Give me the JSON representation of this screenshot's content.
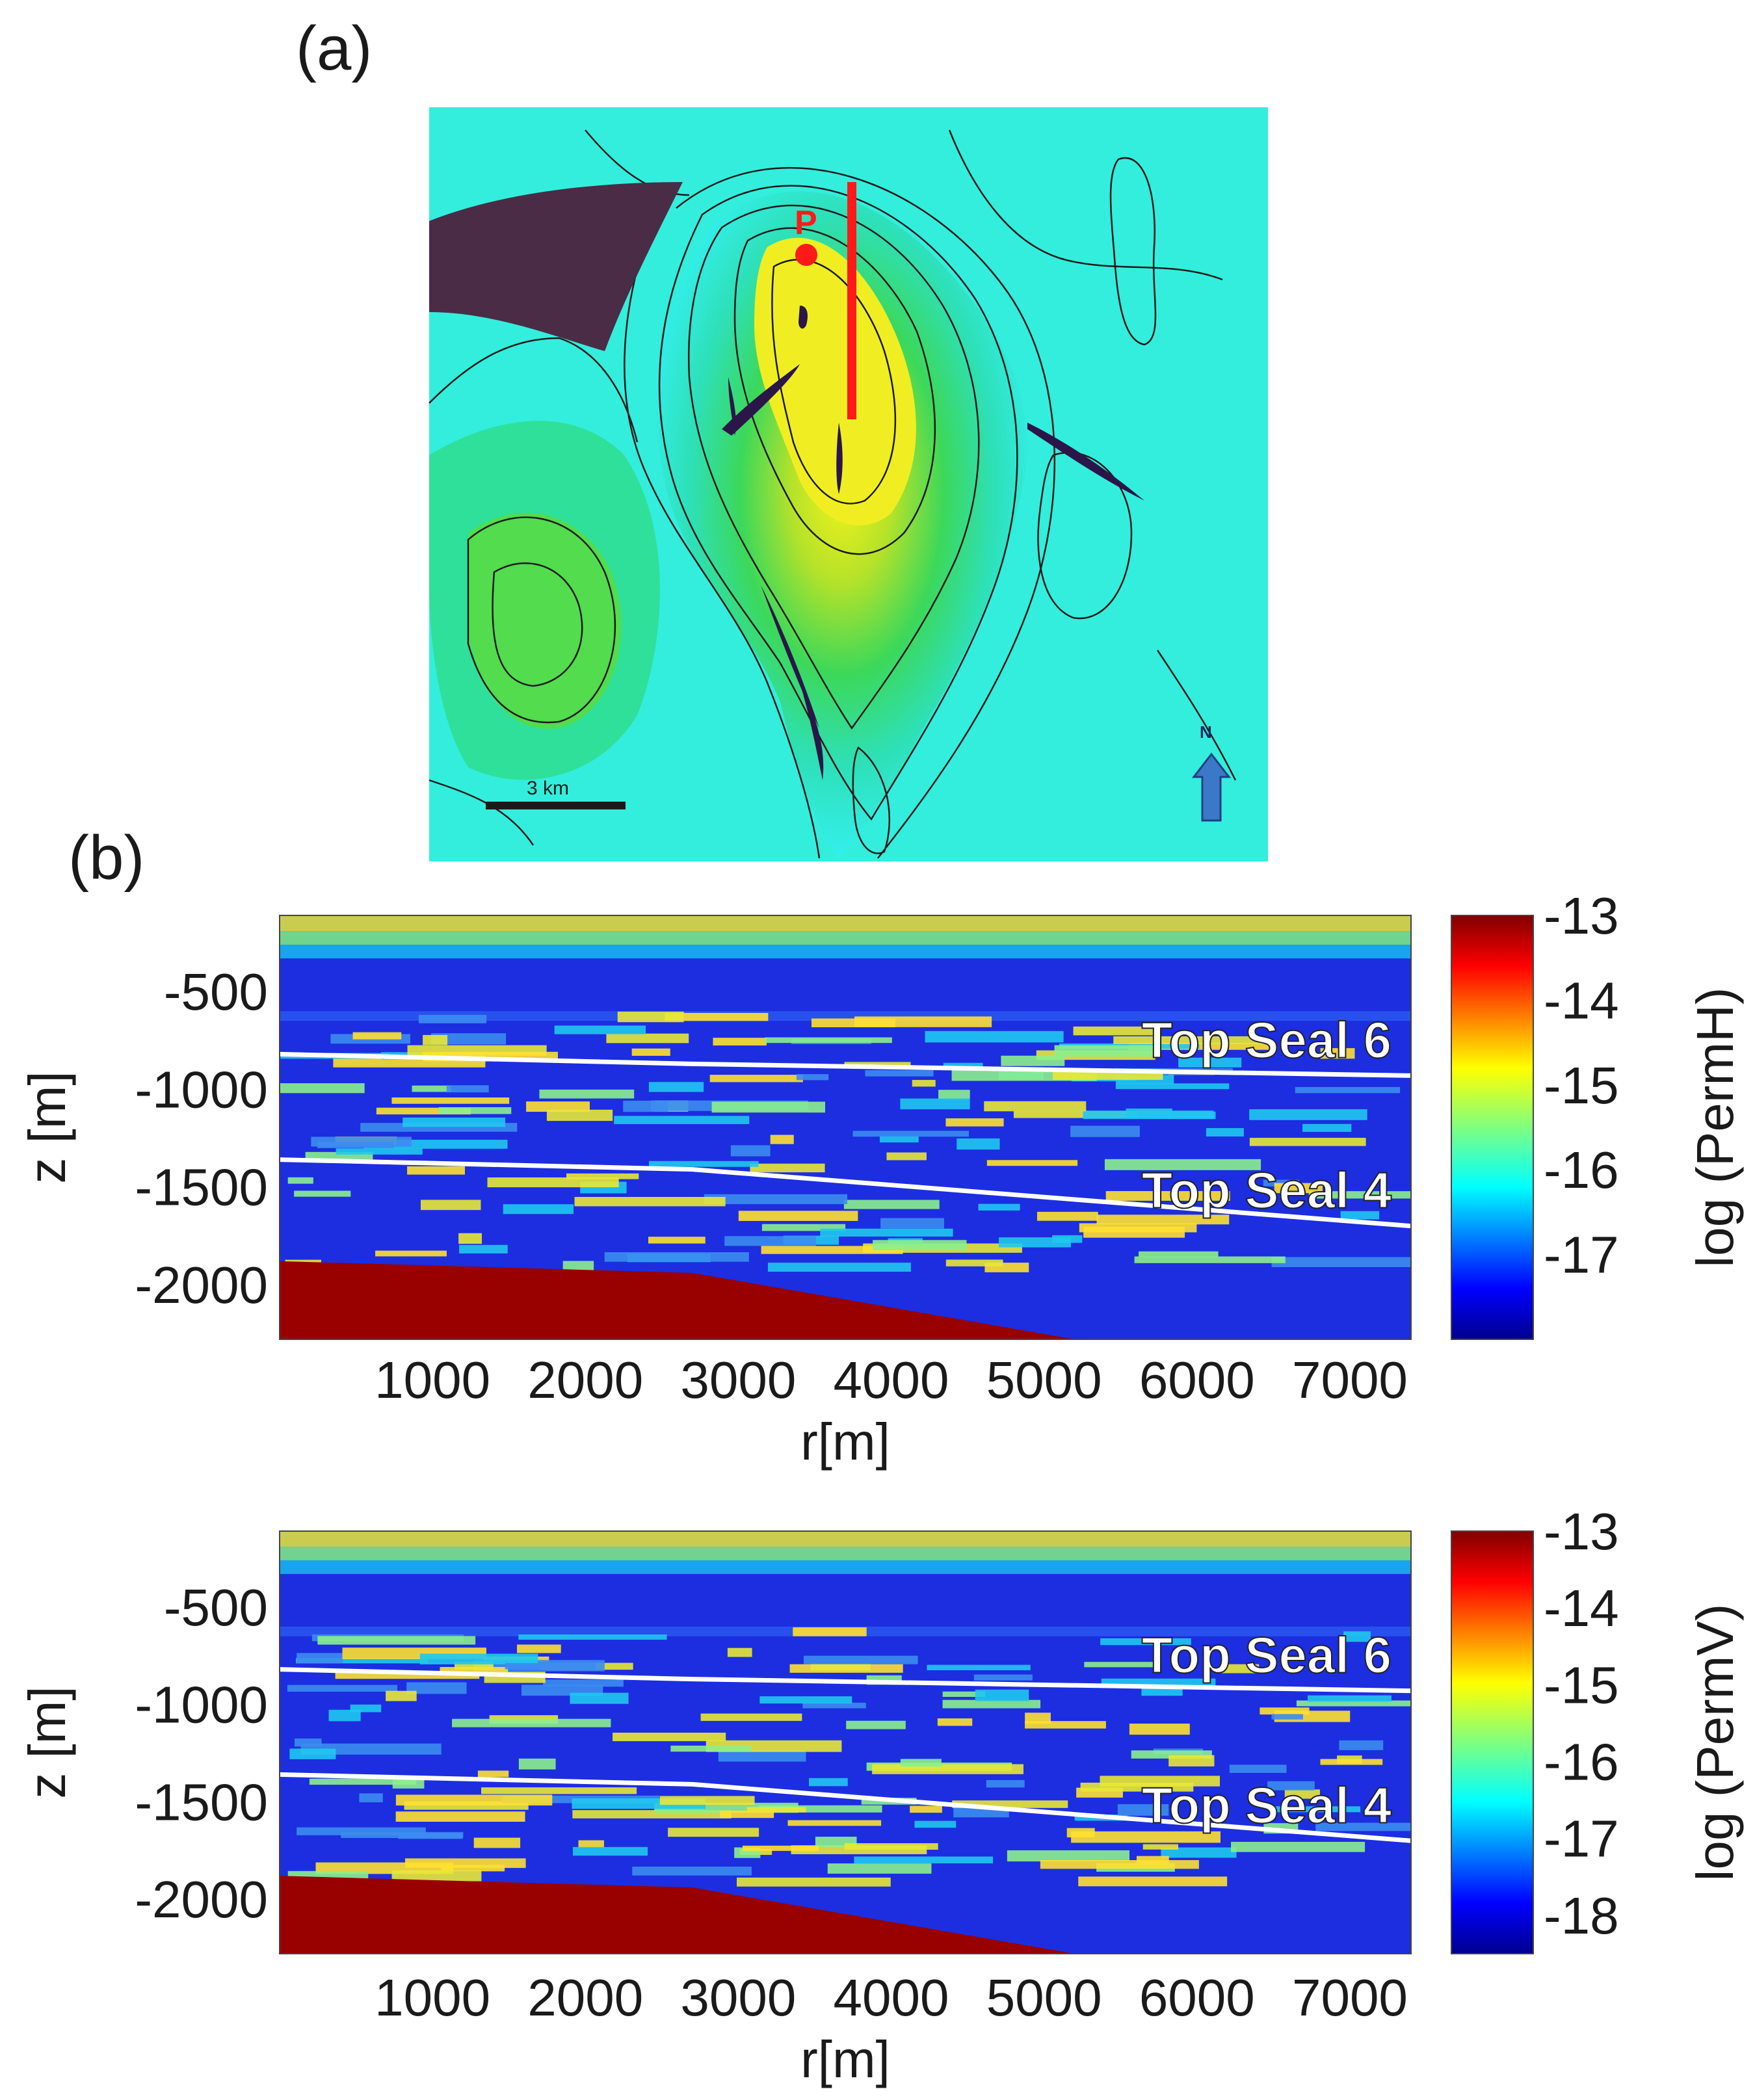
{
  "panel_a": {
    "label": "(a)",
    "scale_bar_label": "3 km",
    "north_label": "N",
    "point_label": "P",
    "colors": {
      "section_line": "#ff1a1a",
      "point": "#ff1a1a",
      "north_arrow": "#3b78c8",
      "scale_bar": "#1a1a1a"
    }
  },
  "panel_b": {
    "label": "(b)"
  },
  "chart_data": [
    {
      "type": "heatmap",
      "title": "",
      "xlabel": "r[m]",
      "ylabel": "z [m]",
      "x_ticks": [
        1000,
        2000,
        3000,
        4000,
        5000,
        6000,
        7000
      ],
      "y_ticks": [
        -500,
        -1000,
        -1500,
        -2000
      ],
      "xlim": [
        0,
        7400
      ],
      "ylim": [
        -2280,
        -110
      ],
      "colorbar": {
        "label": "log (PermH)",
        "ticks": [
          -13,
          -14,
          -15,
          -16,
          -17
        ],
        "range": [
          -18,
          -13
        ],
        "colormap": "jet"
      },
      "annotations": [
        {
          "text": "Top Seal 6",
          "line": [
            [
              0,
              -820
            ],
            [
              2700,
              -870
            ],
            [
              7400,
              -930
            ]
          ]
        },
        {
          "text": "Top Seal 4",
          "line": [
            [
              0,
              -1360
            ],
            [
              2700,
              -1410
            ],
            [
              7400,
              -1700
            ]
          ]
        }
      ],
      "basement": {
        "value": -13,
        "top": [
          [
            0,
            -1880
          ],
          [
            2700,
            -1940
          ],
          [
            5200,
            -2280
          ]
        ]
      }
    },
    {
      "type": "heatmap",
      "title": "",
      "xlabel": "r[m]",
      "ylabel": "z [m]",
      "x_ticks": [
        1000,
        2000,
        3000,
        4000,
        5000,
        6000,
        7000
      ],
      "y_ticks": [
        -500,
        -1000,
        -1500,
        -2000
      ],
      "xlim": [
        0,
        7400
      ],
      "ylim": [
        -2280,
        -110
      ],
      "colorbar": {
        "label": "log (PermV)",
        "ticks": [
          -13,
          -14,
          -15,
          -16,
          -17,
          -18
        ],
        "range": [
          -18.5,
          -13
        ],
        "colormap": "jet"
      },
      "annotations": [
        {
          "text": "Top Seal 6",
          "line": [
            [
              0,
              -820
            ],
            [
              2700,
              -870
            ],
            [
              7400,
              -930
            ]
          ]
        },
        {
          "text": "Top Seal 4",
          "line": [
            [
              0,
              -1360
            ],
            [
              2700,
              -1410
            ],
            [
              7400,
              -1700
            ]
          ]
        }
      ],
      "basement": {
        "value": -13,
        "top": [
          [
            0,
            -1880
          ],
          [
            2700,
            -1940
          ],
          [
            5200,
            -2280
          ]
        ]
      }
    }
  ]
}
